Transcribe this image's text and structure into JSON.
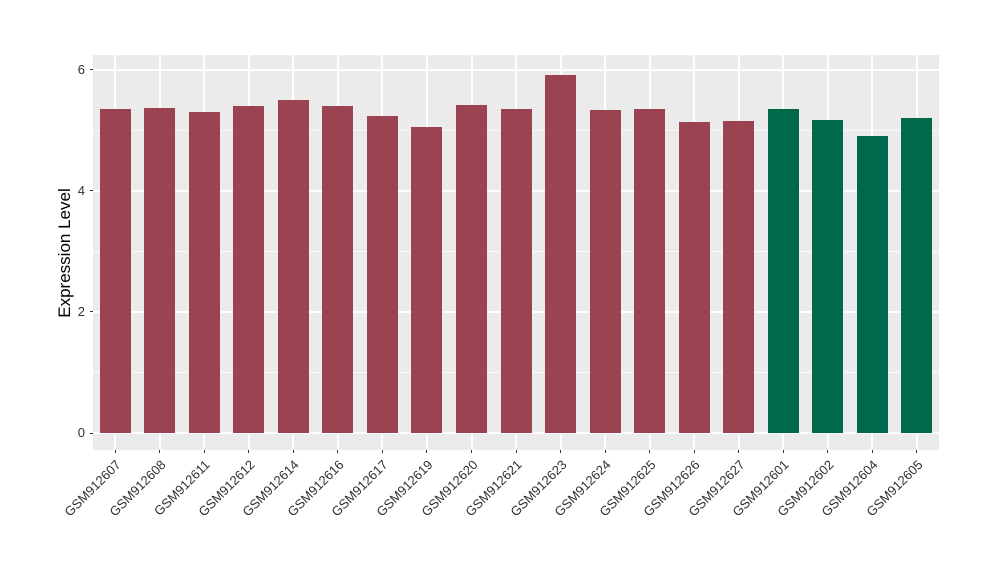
{
  "chart_data": {
    "type": "bar",
    "title": "",
    "xlabel": "",
    "ylabel": "Expression Level",
    "categories": [
      "GSM912607",
      "GSM912608",
      "GSM912611",
      "GSM912612",
      "GSM912614",
      "GSM912616",
      "GSM912617",
      "GSM912619",
      "GSM912620",
      "GSM912621",
      "GSM912623",
      "GSM912624",
      "GSM912625",
      "GSM912626",
      "GSM912627",
      "GSM912601",
      "GSM912602",
      "GSM912604",
      "GSM912605"
    ],
    "values": [
      5.35,
      5.37,
      5.3,
      5.4,
      5.5,
      5.4,
      5.23,
      5.06,
      5.41,
      5.35,
      5.91,
      5.34,
      5.35,
      5.14,
      5.15,
      5.35,
      5.16,
      4.9,
      5.2
    ],
    "groups": [
      "group1",
      "group1",
      "group1",
      "group1",
      "group1",
      "group1",
      "group1",
      "group1",
      "group1",
      "group1",
      "group1",
      "group1",
      "group1",
      "group1",
      "group1",
      "group2",
      "group2",
      "group2",
      "group2"
    ],
    "group_colors": {
      "group1": "#9B4351",
      "group2": "#00694C"
    },
    "yticks": [
      0,
      2,
      4,
      6
    ],
    "minor_yticks": [
      1,
      3,
      5
    ],
    "ylim": [
      -0.28,
      6.24
    ],
    "legend": "none",
    "grid": true,
    "panel_bg": "#EBEBEB",
    "grid_color": "#FFFFFF",
    "axis_text_color": "#303030",
    "axis_title_color": "#000000",
    "tick_color": "#333333"
  }
}
